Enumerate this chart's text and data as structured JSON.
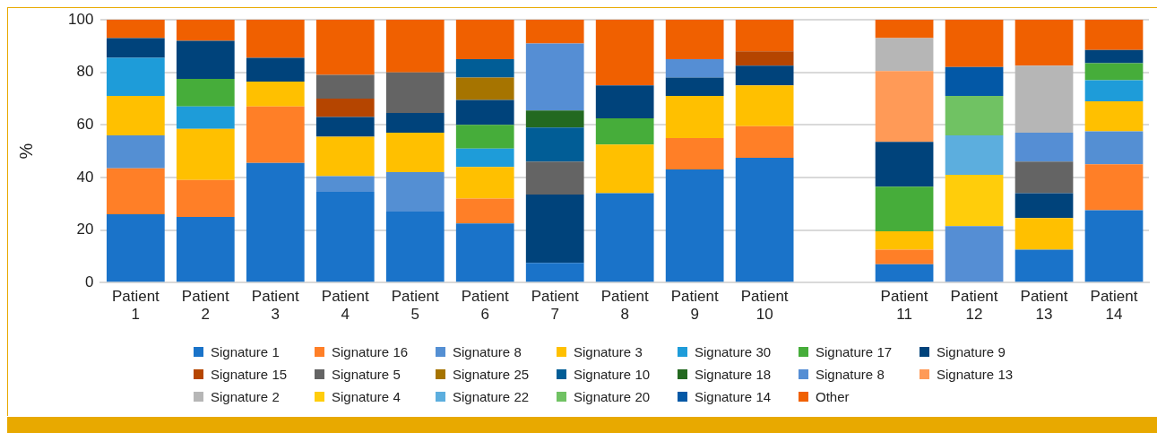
{
  "chart_data": {
    "type": "bar",
    "stacked": true,
    "ylabel": "%",
    "ylim": [
      0,
      100
    ],
    "yticks": [
      0,
      20,
      40,
      60,
      80,
      100
    ],
    "grid": "y",
    "legend": "bottom",
    "categories": [
      "Patient 1",
      "Patient 2",
      "Patient 3",
      "Patient 4",
      "Patient 5",
      "Patient 6",
      "Patient 7",
      "Patient 8",
      "Patient 9",
      "Patient 10",
      null,
      "Patient 11",
      "Patient 12",
      "Patient 13",
      "Patient 14"
    ],
    "series": [
      {
        "name": "Signature 1",
        "color": "#1a73c9",
        "values": [
          26,
          25,
          45.5,
          34.5,
          27,
          22.5,
          7.5,
          34,
          43,
          47.5,
          null,
          7,
          null,
          12.5,
          27.5
        ]
      },
      {
        "name": "Signature 16",
        "color": "#ff7f27",
        "values": [
          17.5,
          14,
          21.5,
          null,
          null,
          9.5,
          null,
          null,
          12,
          12,
          null,
          5.5,
          null,
          null,
          17.5
        ]
      },
      {
        "name": "Signature 8",
        "color": "#548fd3",
        "values": [
          12.5,
          null,
          null,
          6,
          15,
          null,
          null,
          null,
          null,
          null,
          null,
          null,
          null,
          null,
          12.5
        ]
      },
      {
        "name": "Signature 3",
        "color": "#ffc000",
        "values": [
          15,
          19.5,
          9.5,
          15,
          15,
          12,
          null,
          18.5,
          16,
          15.5,
          null,
          7,
          null,
          12,
          11.5
        ]
      },
      {
        "name": "Signature 30",
        "color": "#1e9cd9",
        "values": [
          14.5,
          8.5,
          null,
          null,
          null,
          7,
          null,
          null,
          null,
          null,
          null,
          null,
          null,
          null,
          8
        ]
      },
      {
        "name": "Signature 17",
        "color": "#46ad3a",
        "values": [
          null,
          10.5,
          null,
          null,
          null,
          9,
          null,
          10,
          null,
          null,
          null,
          17,
          null,
          null,
          6.5
        ]
      },
      {
        "name": "Signature 9",
        "color": "#00437b",
        "values": [
          7.5,
          14.5,
          9,
          7.5,
          7.5,
          9.5,
          26,
          12.5,
          7,
          7.5,
          null,
          17,
          null,
          9.5,
          5
        ]
      },
      {
        "name": "Signature 15",
        "color": "#b54500",
        "values": [
          null,
          null,
          null,
          7,
          null,
          null,
          null,
          null,
          null,
          5.5,
          null,
          null,
          null,
          null,
          null
        ]
      },
      {
        "name": "Signature 5",
        "color": "#646464",
        "values": [
          null,
          null,
          null,
          9,
          15.5,
          null,
          12.5,
          null,
          null,
          null,
          null,
          null,
          null,
          12,
          null
        ]
      },
      {
        "name": "Signature 25",
        "color": "#a67400",
        "values": [
          null,
          null,
          null,
          null,
          null,
          8.5,
          null,
          null,
          null,
          null,
          null,
          null,
          null,
          null,
          null
        ]
      },
      {
        "name": "Signature 10",
        "color": "#015d96",
        "values": [
          null,
          null,
          null,
          null,
          null,
          7,
          13,
          null,
          null,
          null,
          null,
          null,
          null,
          null,
          null
        ]
      },
      {
        "name": "Signature 18",
        "color": "#236920",
        "values": [
          null,
          null,
          null,
          null,
          null,
          null,
          6.5,
          null,
          null,
          null,
          null,
          null,
          null,
          null,
          null
        ]
      },
      {
        "name": "Signature 8",
        "color": "#558ed4",
        "values": [
          null,
          null,
          null,
          null,
          null,
          null,
          25.5,
          null,
          7,
          null,
          null,
          null,
          21.5,
          11,
          null
        ]
      },
      {
        "name": "Signature 13",
        "color": "#ff9a57",
        "values": [
          null,
          null,
          null,
          null,
          null,
          null,
          null,
          null,
          null,
          null,
          null,
          27,
          null,
          null,
          null
        ]
      },
      {
        "name": "Signature 2",
        "color": "#b6b6b6",
        "values": [
          null,
          null,
          null,
          null,
          null,
          null,
          null,
          null,
          null,
          null,
          null,
          12.5,
          null,
          25.5,
          null
        ]
      },
      {
        "name": "Signature 4",
        "color": "#ffcd0b",
        "values": [
          null,
          null,
          null,
          null,
          null,
          null,
          null,
          null,
          null,
          null,
          null,
          null,
          19.5,
          null,
          null
        ]
      },
      {
        "name": "Signature 22",
        "color": "#5caede",
        "values": [
          null,
          null,
          null,
          null,
          null,
          null,
          null,
          null,
          null,
          null,
          null,
          null,
          15,
          null,
          null
        ]
      },
      {
        "name": "Signature 20",
        "color": "#70c263",
        "values": [
          null,
          null,
          null,
          null,
          null,
          null,
          null,
          null,
          null,
          null,
          null,
          null,
          15,
          null,
          null
        ]
      },
      {
        "name": "Signature 14",
        "color": "#0358a6",
        "values": [
          null,
          null,
          null,
          null,
          null,
          null,
          null,
          null,
          null,
          null,
          null,
          null,
          11,
          null,
          null
        ]
      },
      {
        "name": "Other",
        "color": "#f06000",
        "values": [
          7,
          8,
          14.5,
          21,
          20,
          15,
          9,
          25,
          15,
          12,
          null,
          7,
          18,
          17.5,
          11.5
        ]
      }
    ]
  }
}
